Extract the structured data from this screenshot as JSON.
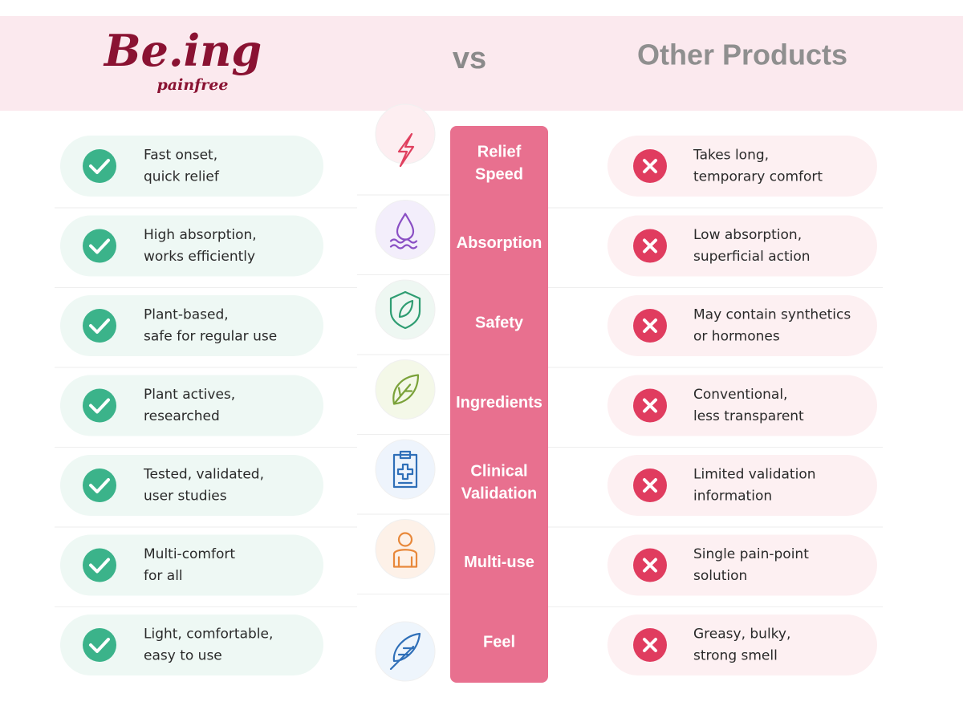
{
  "header": {
    "brand": "Be.ing",
    "tagline": "painfree",
    "vs": "vs",
    "other": "Other Products"
  },
  "rows": [
    {
      "ours": [
        "Fast onset,",
        "quick relief"
      ],
      "category": [
        "Relief",
        "Speed"
      ],
      "theirs": [
        "Takes long,",
        "temporary comfort"
      ]
    },
    {
      "ours": [
        "High absorption,",
        "works efficiently"
      ],
      "category": [
        "Absorption"
      ],
      "theirs": [
        "Low absorption,",
        "superficial action"
      ]
    },
    {
      "ours": [
        "Plant-based,",
        "safe for regular use"
      ],
      "category": [
        "Safety"
      ],
      "theirs": [
        "May contain synthetics",
        "or hormones"
      ]
    },
    {
      "ours": [
        "Plant actives,",
        "researched"
      ],
      "category": [
        "Ingredients"
      ],
      "theirs": [
        "Conventional,",
        "less transparent"
      ]
    },
    {
      "ours": [
        "Tested, validated,",
        "user studies"
      ],
      "category": [
        "Clinical",
        "Validation"
      ],
      "theirs": [
        "Limited validation",
        "information"
      ]
    },
    {
      "ours": [
        "Multi-comfort",
        "for all"
      ],
      "category": [
        "Multi-use"
      ],
      "theirs": [
        "Single pain-point",
        "solution"
      ]
    },
    {
      "ours": [
        "Light, comfortable,",
        "easy to use"
      ],
      "category": [
        "Feel"
      ],
      "theirs": [
        "Greasy, bulky,",
        "strong smell"
      ]
    }
  ]
}
